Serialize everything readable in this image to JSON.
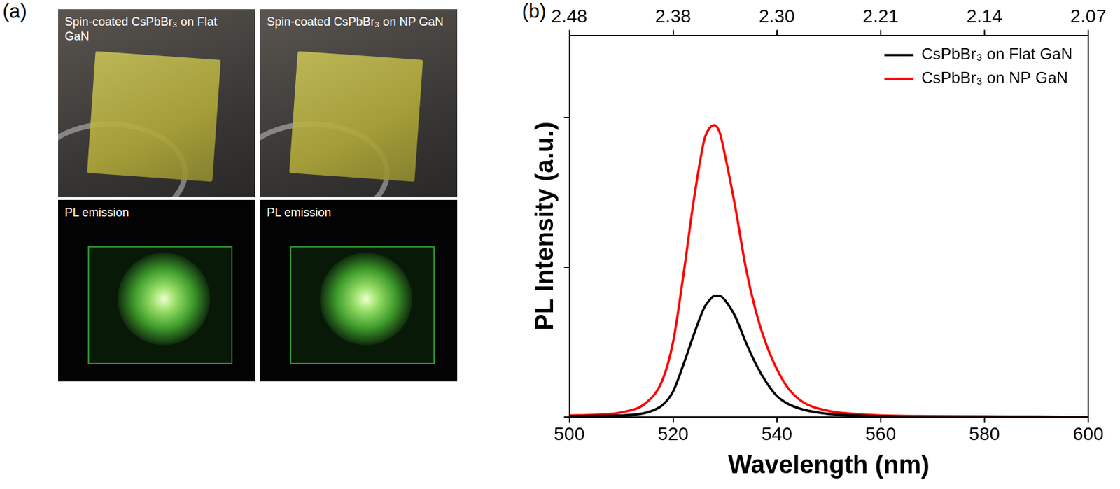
{
  "panel_a": {
    "label": "(a)",
    "photos": [
      {
        "caption": "Spin-coated CsPbBr₃ on Flat GaN",
        "pl_caption": "PL emission"
      },
      {
        "caption": "Spin-coated CsPbBr₃ on NP GaN",
        "pl_caption": "PL emission"
      }
    ]
  },
  "panel_b": {
    "label": "(b)"
  },
  "chart_data": {
    "type": "line",
    "x_label": "Wavelength (nm)",
    "y_label": "PL Intensity (a.u.)",
    "x": [
      500,
      505,
      510,
      515,
      518,
      520,
      522,
      524,
      526,
      527,
      528,
      529,
      530,
      532,
      534,
      536,
      538,
      540,
      542,
      545,
      550,
      555,
      560,
      570,
      580,
      590,
      600
    ],
    "series": [
      {
        "name": "CsPbBr₃ on Flat GaN",
        "color": "#000000",
        "values": [
          0.005,
          0.007,
          0.01,
          0.03,
          0.08,
          0.17,
          0.35,
          0.55,
          0.73,
          0.78,
          0.81,
          0.81,
          0.78,
          0.67,
          0.5,
          0.35,
          0.23,
          0.14,
          0.09,
          0.05,
          0.02,
          0.01,
          0.005,
          0.002,
          0.001,
          0,
          0
        ]
      },
      {
        "name": "CsPbBr₃ on NP GaN",
        "color": "#ff0000",
        "values": [
          0.01,
          0.015,
          0.03,
          0.1,
          0.25,
          0.5,
          0.95,
          1.45,
          1.85,
          1.93,
          1.95,
          1.9,
          1.75,
          1.4,
          1.0,
          0.7,
          0.48,
          0.32,
          0.2,
          0.1,
          0.04,
          0.02,
          0.01,
          0.005,
          0.003,
          0.002,
          0
        ]
      }
    ],
    "xlim": [
      500,
      600
    ],
    "xticks": [
      500,
      520,
      540,
      560,
      580,
      600
    ],
    "x2lim": [
      500,
      600
    ],
    "x2ticks": [
      {
        "value": 500,
        "label": "2.48"
      },
      {
        "value": 520,
        "label": "2.38"
      },
      {
        "value": 540,
        "label": "2.30"
      },
      {
        "value": 560,
        "label": "2.21"
      },
      {
        "value": 580,
        "label": "2.14"
      },
      {
        "value": 600,
        "label": "2.07"
      }
    ],
    "ylim": [
      0,
      2.55
    ],
    "yticks": [
      0,
      1,
      2
    ],
    "tick_labels": "x",
    "grid": false,
    "legend": "top-right"
  }
}
